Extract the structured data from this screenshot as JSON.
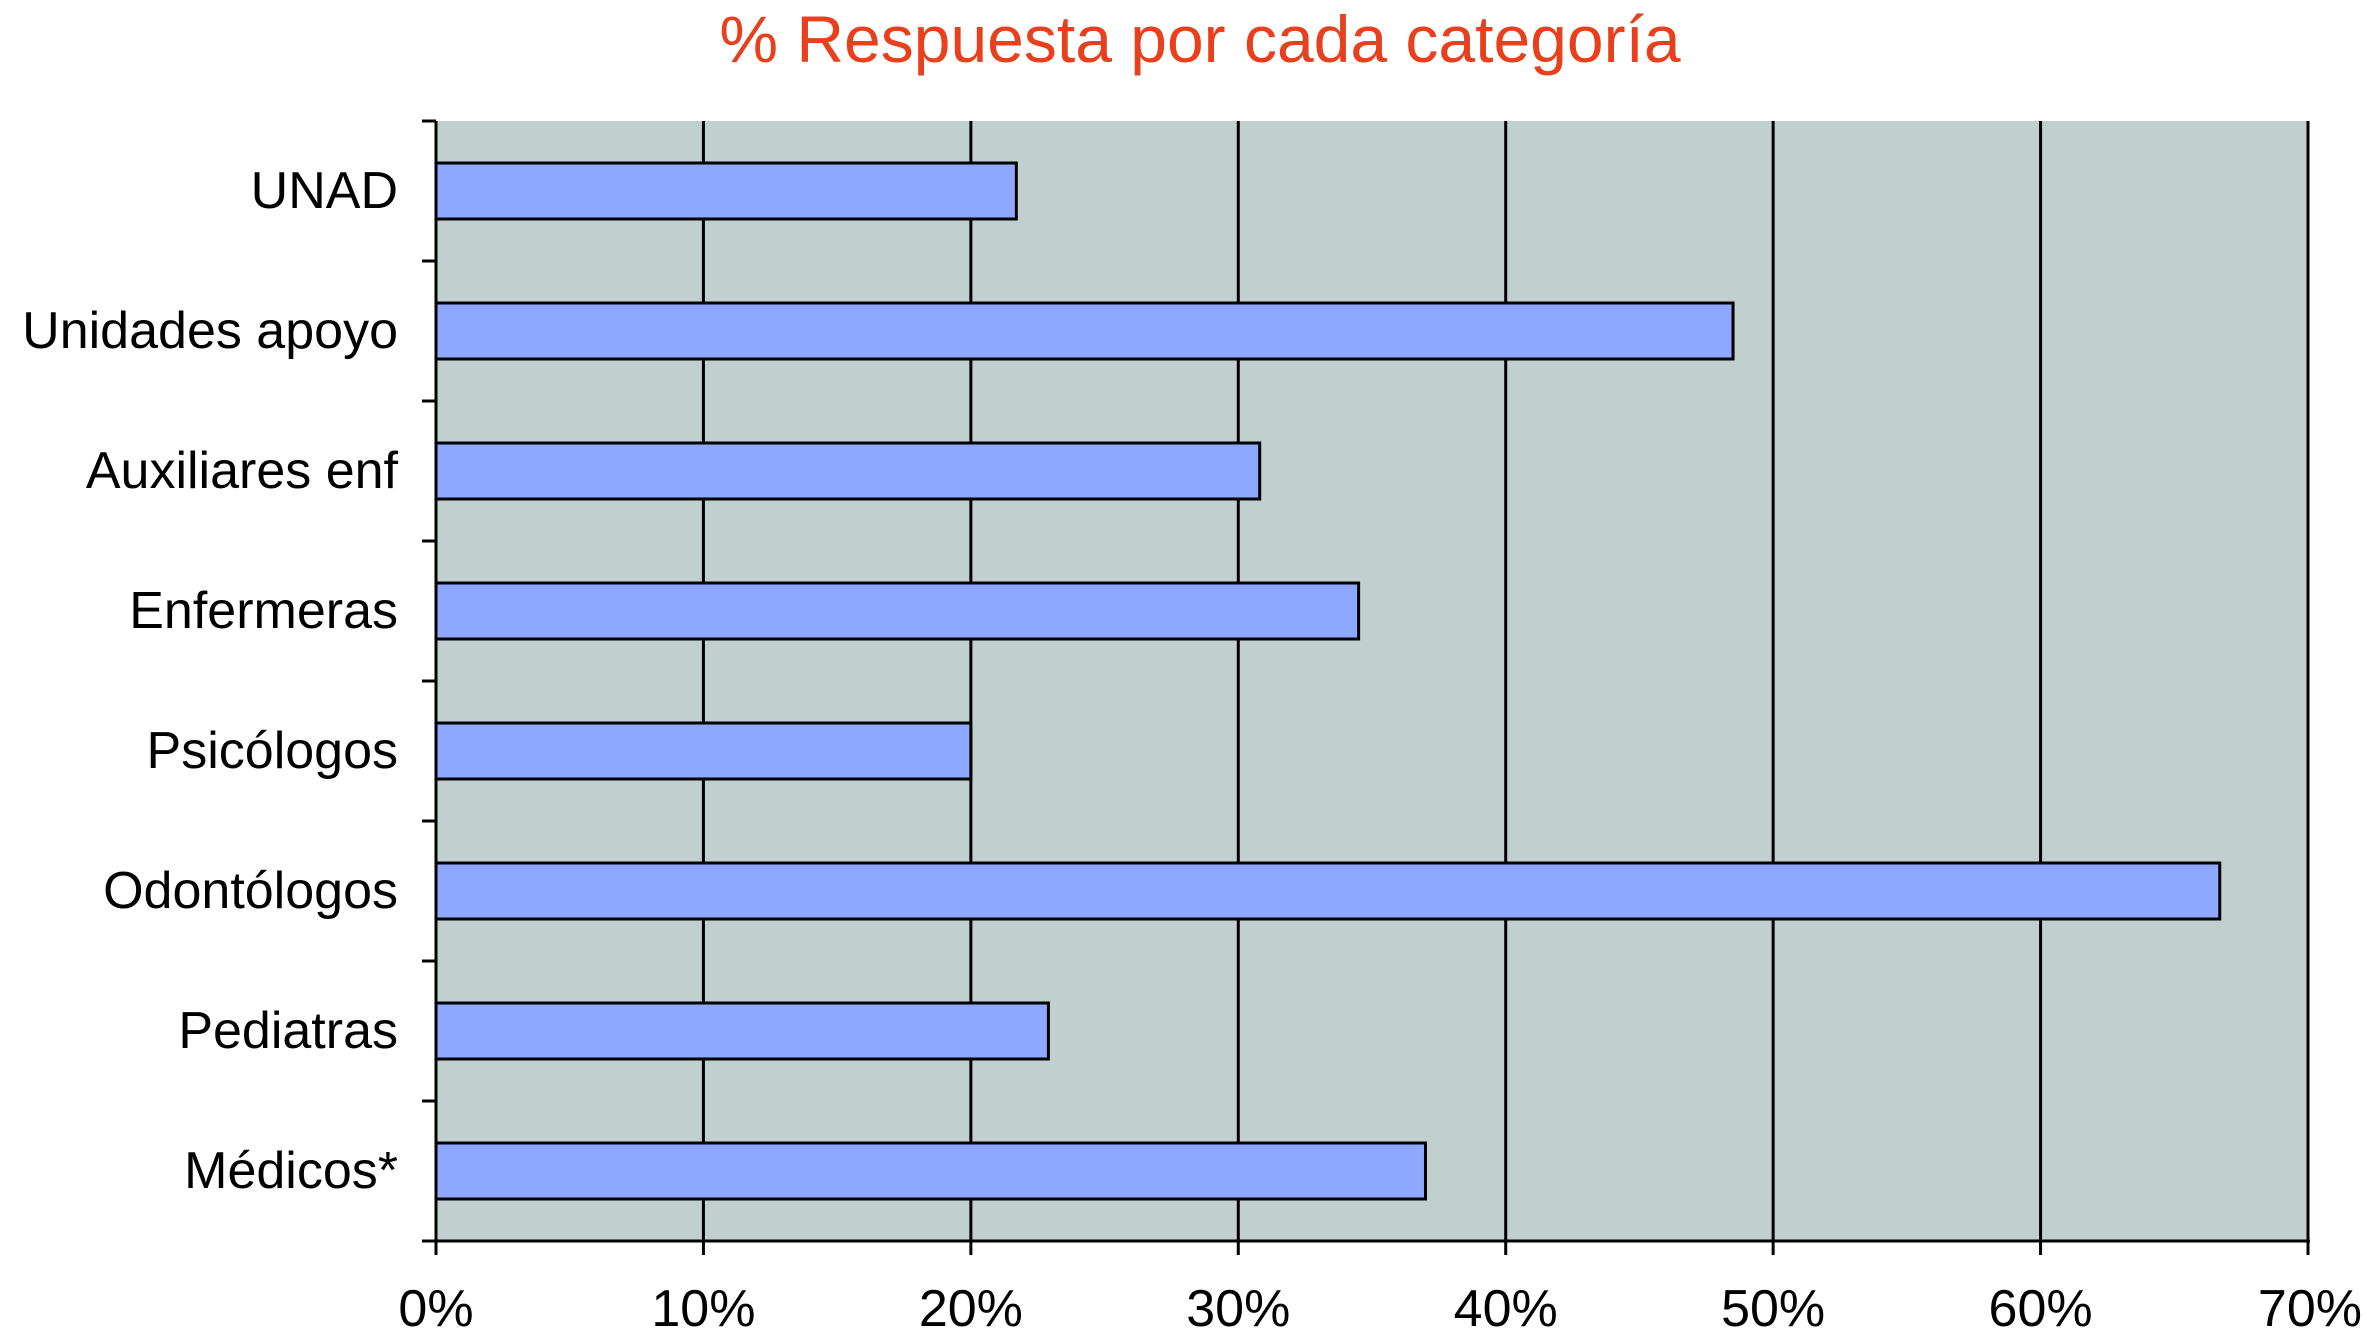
{
  "chart_data": {
    "type": "bar",
    "orientation": "horizontal",
    "title": "% Respuesta por cada categoría",
    "title_color": "#e8401c",
    "categories": [
      "UNAD",
      "Unidades apoyo",
      "Auxiliares enf",
      "Enfermeras",
      "Psicólogos",
      "Odontólogos",
      "Pediatras",
      "Médicos*"
    ],
    "values": [
      21.7,
      48.5,
      30.8,
      34.5,
      20.0,
      66.7,
      22.9,
      37.0
    ],
    "xlabel": "",
    "ylabel": "",
    "xlim": [
      0,
      70
    ],
    "x_ticks": [
      0,
      10,
      20,
      30,
      40,
      50,
      60,
      70
    ],
    "x_tick_labels": [
      "0%",
      "10%",
      "20%",
      "30%",
      "40%",
      "50%",
      "60%",
      "70%"
    ],
    "grid": "vertical",
    "legend": "none",
    "colors": {
      "bar": "#8fa8ff",
      "plot_background": "#c1cfcf",
      "grid": "#000000"
    }
  }
}
